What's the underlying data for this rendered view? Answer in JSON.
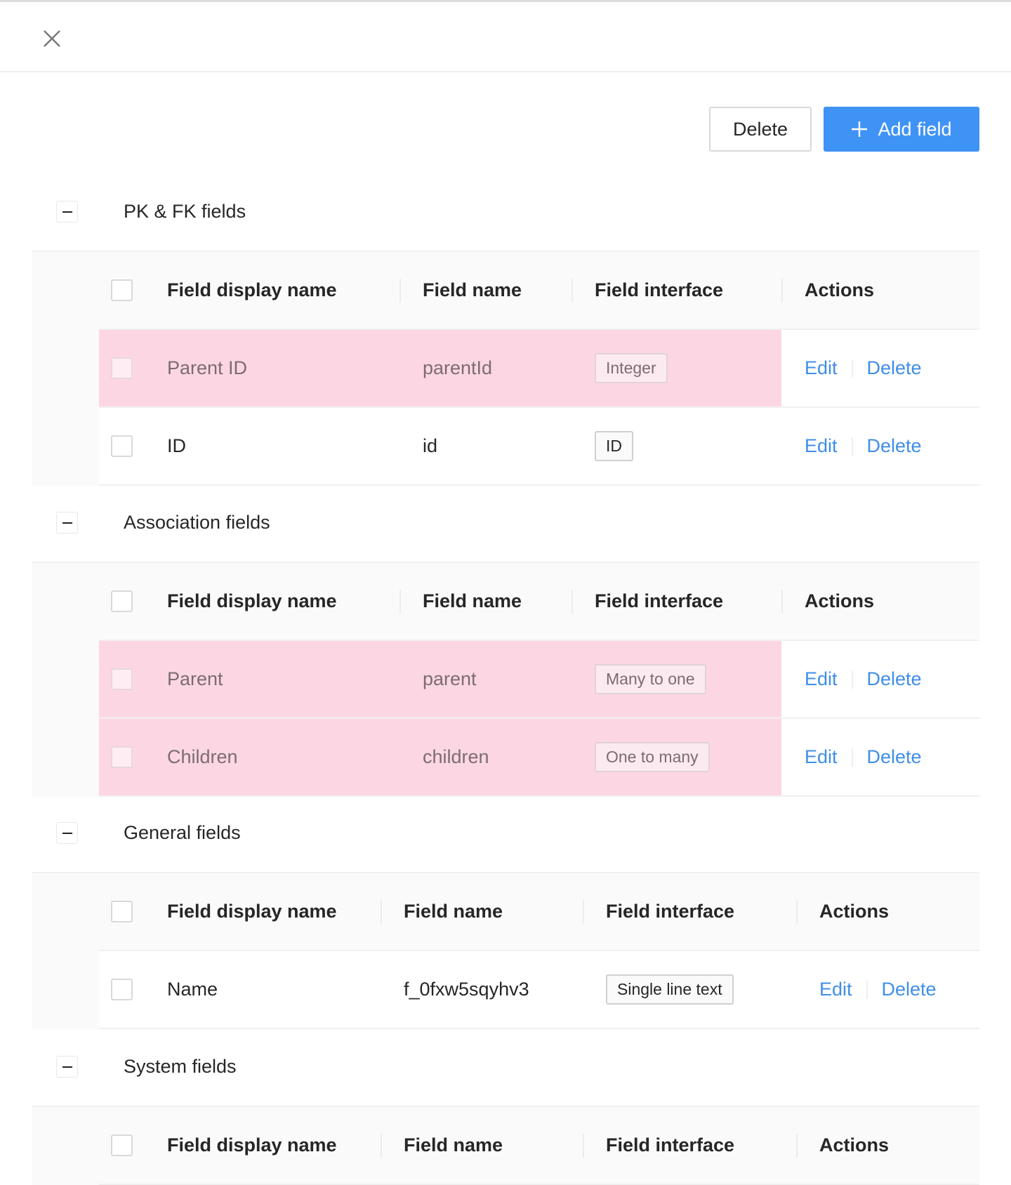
{
  "header": {
    "close_icon": "close-icon"
  },
  "toolbar": {
    "delete_label": "Delete",
    "add_label": "Add field",
    "add_icon": "plus-icon",
    "accent": "#3f93f5"
  },
  "highlight_color": "#fdd6e4",
  "columns": [
    "Field display name",
    "Field name",
    "Field interface",
    "Actions"
  ],
  "actions": {
    "edit": "Edit",
    "delete": "Delete"
  },
  "sections": [
    {
      "title": "PK & FK fields",
      "rows": [
        {
          "display": "Parent ID",
          "name": "parentId",
          "interface": "Integer",
          "highlighted": true
        },
        {
          "display": "ID",
          "name": "id",
          "interface": "ID",
          "highlighted": false
        }
      ]
    },
    {
      "title": "Association fields",
      "rows": [
        {
          "display": "Parent",
          "name": "parent",
          "interface": "Many to one",
          "highlighted": true
        },
        {
          "display": "Children",
          "name": "children",
          "interface": "One to many",
          "highlighted": true
        }
      ]
    },
    {
      "title": "General fields",
      "rows": [
        {
          "display": "Name",
          "name": "f_0fxw5sqyhv3",
          "interface": "Single line text",
          "highlighted": false
        }
      ]
    },
    {
      "title": "System fields",
      "rows": []
    }
  ]
}
